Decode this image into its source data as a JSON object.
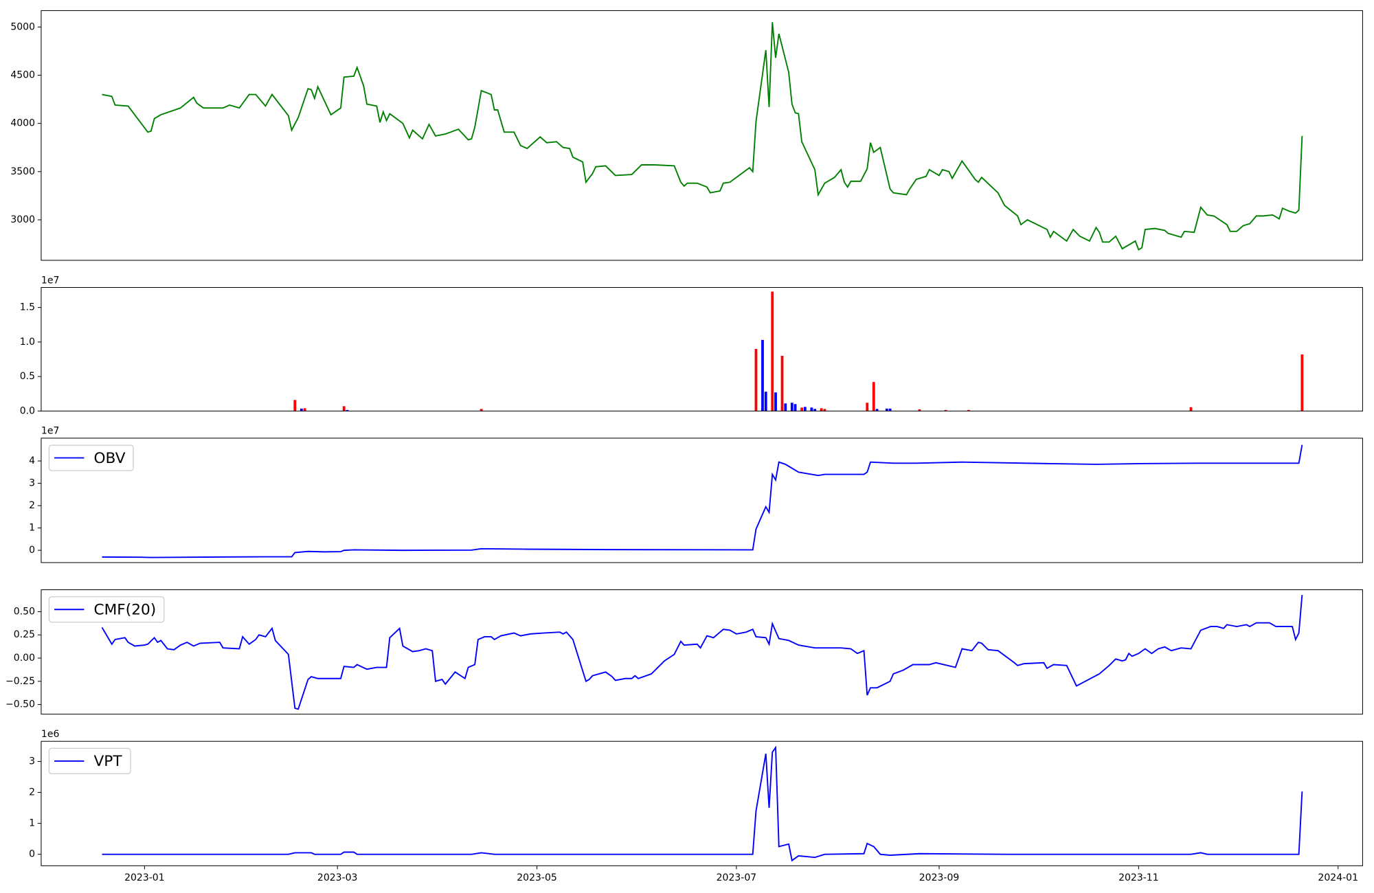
{
  "chart_data": [
    {
      "type": "line",
      "color": "#008000",
      "xlim": [
        -31.6,
        372.5
      ],
      "ylim": [
        2580,
        5170
      ],
      "yticks": [
        3000,
        3500,
        4000,
        4500,
        5000
      ],
      "x": [
        -13,
        -10,
        -9,
        -5,
        -1,
        1,
        2,
        3,
        5,
        11,
        15,
        16,
        18,
        24,
        26,
        29,
        32,
        34,
        37,
        39,
        44,
        45,
        47,
        50,
        51,
        52,
        53,
        57,
        60,
        61,
        64,
        65,
        67,
        68,
        71,
        72,
        73,
        74,
        75,
        79,
        81,
        82,
        85,
        87,
        89,
        92,
        96,
        99,
        100,
        101,
        103,
        106,
        107,
        108,
        110,
        113,
        115,
        117,
        121,
        123,
        126,
        128,
        130,
        131,
        134,
        135,
        137,
        138,
        141,
        144,
        149,
        152,
        156,
        162,
        164,
        165,
        166,
        169,
        172,
        173,
        176,
        177,
        179,
        185,
        186,
        187,
        190,
        191,
        192,
        193,
        194,
        197,
        198,
        199,
        200,
        201,
        205,
        206,
        208,
        211,
        213,
        214,
        215,
        216,
        219,
        221,
        222,
        223,
        225,
        228,
        229,
        233,
        234,
        236,
        239,
        240,
        241,
        243,
        244,
        246,
        247,
        250,
        254,
        255,
        256,
        261,
        263,
        267,
        268,
        270,
        276,
        277,
        278,
        282,
        284,
        286,
        289,
        291,
        292,
        293,
        295,
        297,
        299,
        303,
        304,
        305,
        306,
        309,
        312,
        313,
        317,
        318,
        321,
        323,
        325,
        327,
        331,
        332,
        334,
        336,
        338,
        340,
        342,
        345,
        347,
        348,
        350,
        352,
        353,
        354
      ],
      "values": [
        4300,
        4280,
        4190,
        4180,
        4000,
        3910,
        3920,
        4050,
        4090,
        4160,
        4270,
        4210,
        4160,
        4160,
        4190,
        4160,
        4300,
        4300,
        4180,
        4300,
        4080,
        3930,
        4060,
        4360,
        4350,
        4260,
        4380,
        4090,
        4160,
        4480,
        4490,
        4580,
        4390,
        4200,
        4180,
        4010,
        4120,
        4030,
        4100,
        4000,
        3850,
        3930,
        3840,
        3990,
        3870,
        3890,
        3940,
        3830,
        3840,
        3960,
        4340,
        4300,
        4140,
        4140,
        3910,
        3910,
        3770,
        3740,
        3860,
        3800,
        3810,
        3750,
        3740,
        3650,
        3600,
        3390,
        3480,
        3550,
        3560,
        3460,
        3470,
        3570,
        3570,
        3560,
        3390,
        3350,
        3380,
        3380,
        3340,
        3280,
        3300,
        3380,
        3390,
        3540,
        3500,
        4020,
        4760,
        4170,
        5050,
        4680,
        4930,
        4530,
        4200,
        4110,
        4100,
        3810,
        3520,
        3260,
        3380,
        3440,
        3520,
        3390,
        3340,
        3400,
        3400,
        3530,
        3800,
        3700,
        3750,
        3320,
        3280,
        3260,
        3320,
        3420,
        3450,
        3520,
        3500,
        3460,
        3520,
        3500,
        3430,
        3610,
        3420,
        3390,
        3440,
        3280,
        3150,
        3040,
        2950,
        3000,
        2900,
        2820,
        2880,
        2780,
        2900,
        2830,
        2780,
        2920,
        2870,
        2770,
        2770,
        2830,
        2700,
        2780,
        2690,
        2710,
        2900,
        2910,
        2890,
        2860,
        2820,
        2880,
        2870,
        3130,
        3050,
        3040,
        2950,
        2880,
        2880,
        2940,
        2960,
        3040,
        3040,
        3050,
        3010,
        3120,
        3090,
        3070,
        3100,
        3870
      ]
    },
    {
      "type": "bar",
      "offset_text": "1e7",
      "xlim": [
        -31.6,
        372.5
      ],
      "ylim": [
        0,
        17900000
      ],
      "yticks": [
        {
          "value": 0,
          "label": "0.0"
        },
        {
          "value": 5000000,
          "label": "0.5"
        },
        {
          "value": 10000000,
          "label": "1.0"
        },
        {
          "value": 15000000,
          "label": "1.5"
        }
      ],
      "x": [
        46,
        48,
        49,
        61,
        62,
        103,
        187,
        189,
        190,
        192,
        193,
        195,
        196,
        198,
        199,
        201,
        202,
        204,
        205,
        207,
        208,
        221,
        223,
        224,
        227,
        228,
        237,
        245,
        252,
        320,
        354
      ],
      "values": [
        1600000,
        350000,
        400000,
        700000,
        150000,
        300000,
        9000000,
        10300000,
        2800000,
        17300000,
        2700000,
        8000000,
        1100000,
        1200000,
        1000000,
        500000,
        600000,
        500000,
        300000,
        400000,
        300000,
        1200000,
        4200000,
        300000,
        350000,
        350000,
        250000,
        150000,
        150000,
        550000,
        8200000
      ],
      "colors": [
        "red",
        "blue",
        "red",
        "red",
        "blue",
        "red",
        "red",
        "blue",
        "blue",
        "red",
        "blue",
        "red",
        "blue",
        "blue",
        "blue",
        "red",
        "blue",
        "blue",
        "blue",
        "red",
        "red",
        "red",
        "red",
        "blue",
        "blue",
        "blue",
        "red",
        "red",
        "red",
        "red",
        "red"
      ]
    },
    {
      "type": "line",
      "offset_text": "1e7",
      "legend": "upper left",
      "xlim": [
        -31.6,
        372.5
      ],
      "ylim": [
        -5500000,
        50200000
      ],
      "yticks": [
        0,
        {
          "value": 10000000,
          "label": "1"
        },
        {
          "value": 20000000,
          "label": "2"
        },
        {
          "value": 30000000,
          "label": "3"
        },
        {
          "value": 40000000,
          "label": "4"
        }
      ],
      "x": [
        -13,
        -1,
        2,
        23,
        36,
        45,
        46,
        50,
        55,
        60,
        61,
        64,
        79,
        100,
        103,
        117,
        143,
        186,
        187,
        190,
        191,
        192,
        193,
        194,
        196,
        200,
        204,
        206,
        208,
        213,
        220,
        221,
        222,
        229,
        236,
        250,
        277,
        291,
        304,
        322,
        353,
        354
      ],
      "series": [
        {
          "name": "OBV",
          "color": "#0000ff",
          "values": [
            -3000000,
            -3100000,
            -3200000,
            -3000000,
            -2900000,
            -2900000,
            -1000000,
            -500000,
            -700000,
            -600000,
            0,
            200000,
            0,
            100000,
            700000,
            500000,
            300000,
            200000,
            9500000,
            19500000,
            17000000,
            34000000,
            31500000,
            39500000,
            38500000,
            35000000,
            34000000,
            33500000,
            34000000,
            34000000,
            34000000,
            35000000,
            39500000,
            39000000,
            39000000,
            39500000,
            38800000,
            38500000,
            38800000,
            39000000,
            39000000,
            47200000
          ]
        }
      ]
    },
    {
      "type": "line",
      "legend": "upper left",
      "xlim": [
        -31.6,
        372.5
      ],
      "ylim": [
        -0.604,
        0.736
      ],
      "yticks": [
        {
          "value": -0.5,
          "label": "−0.50"
        },
        {
          "value": -0.25,
          "label": "−0.25"
        },
        {
          "value": 0,
          "label": "0.00"
        },
        {
          "value": 0.25,
          "label": "0.25"
        },
        {
          "value": 0.5,
          "label": "0.50"
        }
      ],
      "x": [
        -13,
        -10,
        -9,
        -6,
        -5,
        -3,
        0,
        1,
        3,
        4,
        5,
        7,
        9,
        11,
        13,
        15,
        17,
        23,
        24,
        29,
        30,
        32,
        34,
        35,
        37,
        39,
        40,
        44,
        46,
        47,
        50,
        51,
        53,
        56,
        60,
        61,
        64,
        65,
        68,
        71,
        74,
        75,
        78,
        79,
        82,
        84,
        86,
        88,
        89,
        91,
        92,
        95,
        98,
        99,
        101,
        102,
        104,
        106,
        107,
        109,
        113,
        115,
        118,
        122,
        127,
        128,
        129,
        131,
        135,
        136,
        137,
        141,
        143,
        144,
        147,
        149,
        150,
        151,
        155,
        157,
        159,
        162,
        164,
        165,
        169,
        170,
        172,
        174,
        177,
        179,
        181,
        184,
        186,
        187,
        190,
        191,
        192,
        194,
        197,
        200,
        205,
        213,
        216,
        218,
        220,
        221,
        222,
        224,
        228,
        229,
        232,
        235,
        240,
        242,
        248,
        250,
        253,
        255,
        256,
        258,
        261,
        266,
        267,
        269,
        275,
        276,
        278,
        282,
        285,
        292,
        295,
        297,
        299,
        300,
        301,
        302,
        304,
        306,
        308,
        310,
        312,
        314,
        317,
        320,
        323,
        326,
        328,
        330,
        331,
        334,
        337,
        338,
        340,
        344,
        346,
        351,
        352,
        353,
        354
      ],
      "series": [
        {
          "name": "CMF(20)",
          "color": "#0000ff",
          "values": [
            0.33,
            0.15,
            0.2,
            0.22,
            0.17,
            0.13,
            0.14,
            0.15,
            0.22,
            0.17,
            0.19,
            0.1,
            0.09,
            0.14,
            0.17,
            0.13,
            0.16,
            0.17,
            0.11,
            0.1,
            0.23,
            0.15,
            0.2,
            0.25,
            0.23,
            0.32,
            0.19,
            0.04,
            -0.54,
            -0.55,
            -0.23,
            -0.2,
            -0.22,
            -0.22,
            -0.22,
            -0.09,
            -0.1,
            -0.07,
            -0.12,
            -0.1,
            -0.1,
            0.22,
            0.32,
            0.13,
            0.07,
            0.08,
            0.1,
            0.08,
            -0.25,
            -0.23,
            -0.28,
            -0.15,
            -0.22,
            -0.1,
            -0.07,
            0.2,
            0.23,
            0.23,
            0.2,
            0.24,
            0.27,
            0.24,
            0.26,
            0.27,
            0.28,
            0.26,
            0.28,
            0.2,
            -0.25,
            -0.23,
            -0.19,
            -0.15,
            -0.2,
            -0.24,
            -0.22,
            -0.22,
            -0.19,
            -0.22,
            -0.17,
            -0.1,
            -0.03,
            0.04,
            0.18,
            0.14,
            0.15,
            0.11,
            0.24,
            0.22,
            0.31,
            0.3,
            0.26,
            0.28,
            0.31,
            0.23,
            0.22,
            0.15,
            0.37,
            0.21,
            0.19,
            0.14,
            0.11,
            0.11,
            0.1,
            0.05,
            0.08,
            -0.4,
            -0.32,
            -0.32,
            -0.25,
            -0.17,
            -0.13,
            -0.07,
            -0.07,
            -0.05,
            -0.1,
            0.1,
            0.08,
            0.17,
            0.16,
            0.09,
            0.08,
            -0.05,
            -0.08,
            -0.06,
            -0.05,
            -0.11,
            -0.07,
            -0.08,
            -0.3,
            -0.17,
            -0.08,
            -0.01,
            -0.03,
            -0.02,
            0.05,
            0.02,
            0.05,
            0.1,
            0.05,
            0.1,
            0.12,
            0.08,
            0.11,
            0.1,
            0.3,
            0.34,
            0.34,
            0.32,
            0.36,
            0.34,
            0.36,
            0.34,
            0.38,
            0.38,
            0.34,
            0.34,
            0.2,
            0.27,
            0.68
          ]
        }
      ]
    },
    {
      "type": "line",
      "offset_text": "1e6",
      "legend": "upper left",
      "xlim": [
        -31.6,
        372.5
      ],
      "ylim": [
        -370000,
        3650000
      ],
      "yticks": [
        0,
        {
          "value": 1000000,
          "label": "1"
        },
        {
          "value": 2000000,
          "label": "2"
        },
        {
          "value": 3000000,
          "label": "3"
        }
      ],
      "xticks": [
        {
          "value": 0,
          "label": "2023-01"
        },
        {
          "value": 59,
          "label": "2023-03"
        },
        {
          "value": 120,
          "label": "2023-05"
        },
        {
          "value": 181,
          "label": "2023-07"
        },
        {
          "value": 243,
          "label": "2023-09"
        },
        {
          "value": 304,
          "label": "2023-11"
        },
        {
          "value": 365,
          "label": "2024-01"
        }
      ],
      "x": [
        -13,
        44,
        46,
        51,
        52,
        60,
        61,
        64,
        65,
        100,
        103,
        107,
        186,
        187,
        190,
        191,
        192,
        193,
        194,
        197,
        198,
        200,
        205,
        208,
        220,
        221,
        223,
        225,
        228,
        237,
        264,
        320,
        323,
        325,
        353,
        354
      ],
      "series": [
        {
          "name": "VPT",
          "color": "#0000ff",
          "values": [
            0,
            0,
            50000,
            50000,
            0,
            0,
            70000,
            70000,
            0,
            0,
            50000,
            0,
            0,
            1400000,
            3250000,
            1500000,
            3300000,
            3450000,
            250000,
            330000,
            -200000,
            -50000,
            -100000,
            0,
            20000,
            350000,
            250000,
            0,
            -30000,
            20000,
            0,
            0,
            50000,
            0,
            0,
            2030000
          ]
        }
      ]
    }
  ]
}
